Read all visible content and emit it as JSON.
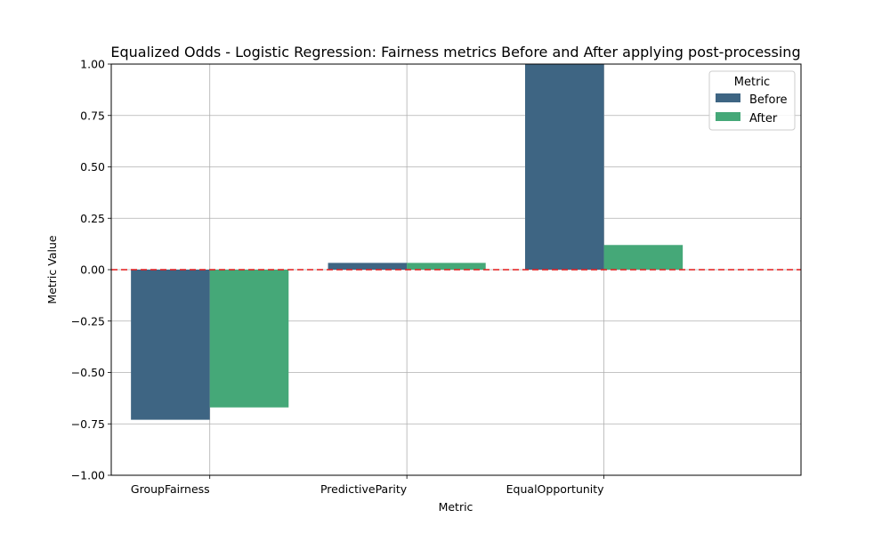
{
  "chart_data": {
    "type": "bar",
    "title": "Equalized Odds - Logistic Regression: Fairness metrics Before and After applying post-processing",
    "xlabel": "Metric",
    "ylabel": "Metric Value",
    "ylim": [
      -1.0,
      1.0
    ],
    "yticks": [
      -1.0,
      -0.75,
      -0.5,
      -0.25,
      0.0,
      0.25,
      0.5,
      0.75,
      1.0
    ],
    "ytick_labels": [
      "−1.00",
      "−0.75",
      "−0.50",
      "−0.25",
      "0.00",
      "0.25",
      "0.50",
      "0.75",
      "1.00"
    ],
    "categories": [
      "GroupFairness",
      "PredictiveParity",
      "EqualOpportunity"
    ],
    "series": [
      {
        "name": "Before",
        "color": "#3e6583",
        "values": [
          -0.73,
          0.033,
          1.0
        ]
      },
      {
        "name": "After",
        "color": "#45a878",
        "values": [
          -0.67,
          0.033,
          0.12
        ]
      }
    ],
    "reference_line": {
      "y": 0.0,
      "color": "#e41a1c",
      "style": "dashed"
    },
    "grid": true,
    "legend": {
      "title": "Metric",
      "placement": "upper right"
    }
  }
}
